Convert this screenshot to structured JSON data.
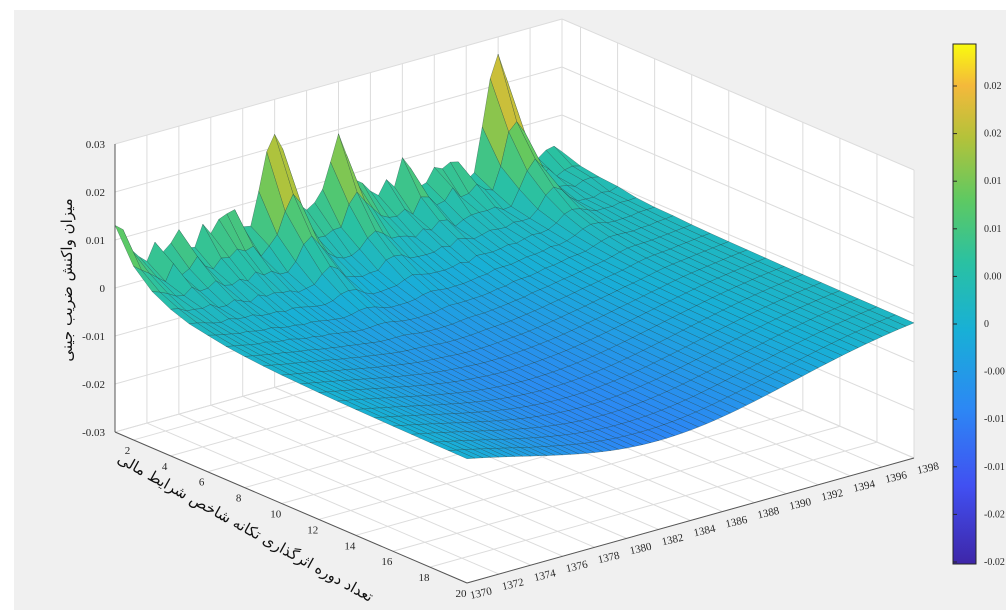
{
  "chart_data": {
    "type": "surface",
    "title": "",
    "zlabel": "میزان واکنش ضریب جینی",
    "xlabel": "تعداد دوره اثرگذاری تکانه شاخص شرایط مالی",
    "ylabel": "",
    "period_ticks": [
      "2",
      "4",
      "6",
      "8",
      "10",
      "12",
      "14",
      "16",
      "18",
      "20"
    ],
    "year_ticks": [
      "1370",
      "1372",
      "1374",
      "1376",
      "1378",
      "1380",
      "1382",
      "1384",
      "1386",
      "1388",
      "1390",
      "1392",
      "1394",
      "1396",
      "1398"
    ],
    "z_ticks": [
      "0.03",
      "0.02",
      "0.01",
      "0",
      "-0.01",
      "-0.02",
      "-0.03"
    ],
    "zlim": [
      -0.03,
      0.03
    ],
    "period_range": [
      1,
      20
    ],
    "year_range": [
      1370,
      1398
    ],
    "colorbar_ticks": [
      "0.02",
      "0.02",
      "0.01",
      "0.01",
      "0.00",
      "0",
      "-0.00",
      "-0.01",
      "-0.01",
      "-0.02",
      "-0.02"
    ],
    "colormap": "parula",
    "grid": true,
    "approx_peaks": [
      {
        "year": 1370,
        "period": 1,
        "z": 0.013
      },
      {
        "year": 1372,
        "period": 1,
        "z": 0.005
      },
      {
        "year": 1380,
        "period": 1,
        "z": 0.024
      },
      {
        "year": 1384,
        "period": 1,
        "z": 0.018
      },
      {
        "year": 1394,
        "period": 1,
        "z": 0.027
      }
    ]
  }
}
